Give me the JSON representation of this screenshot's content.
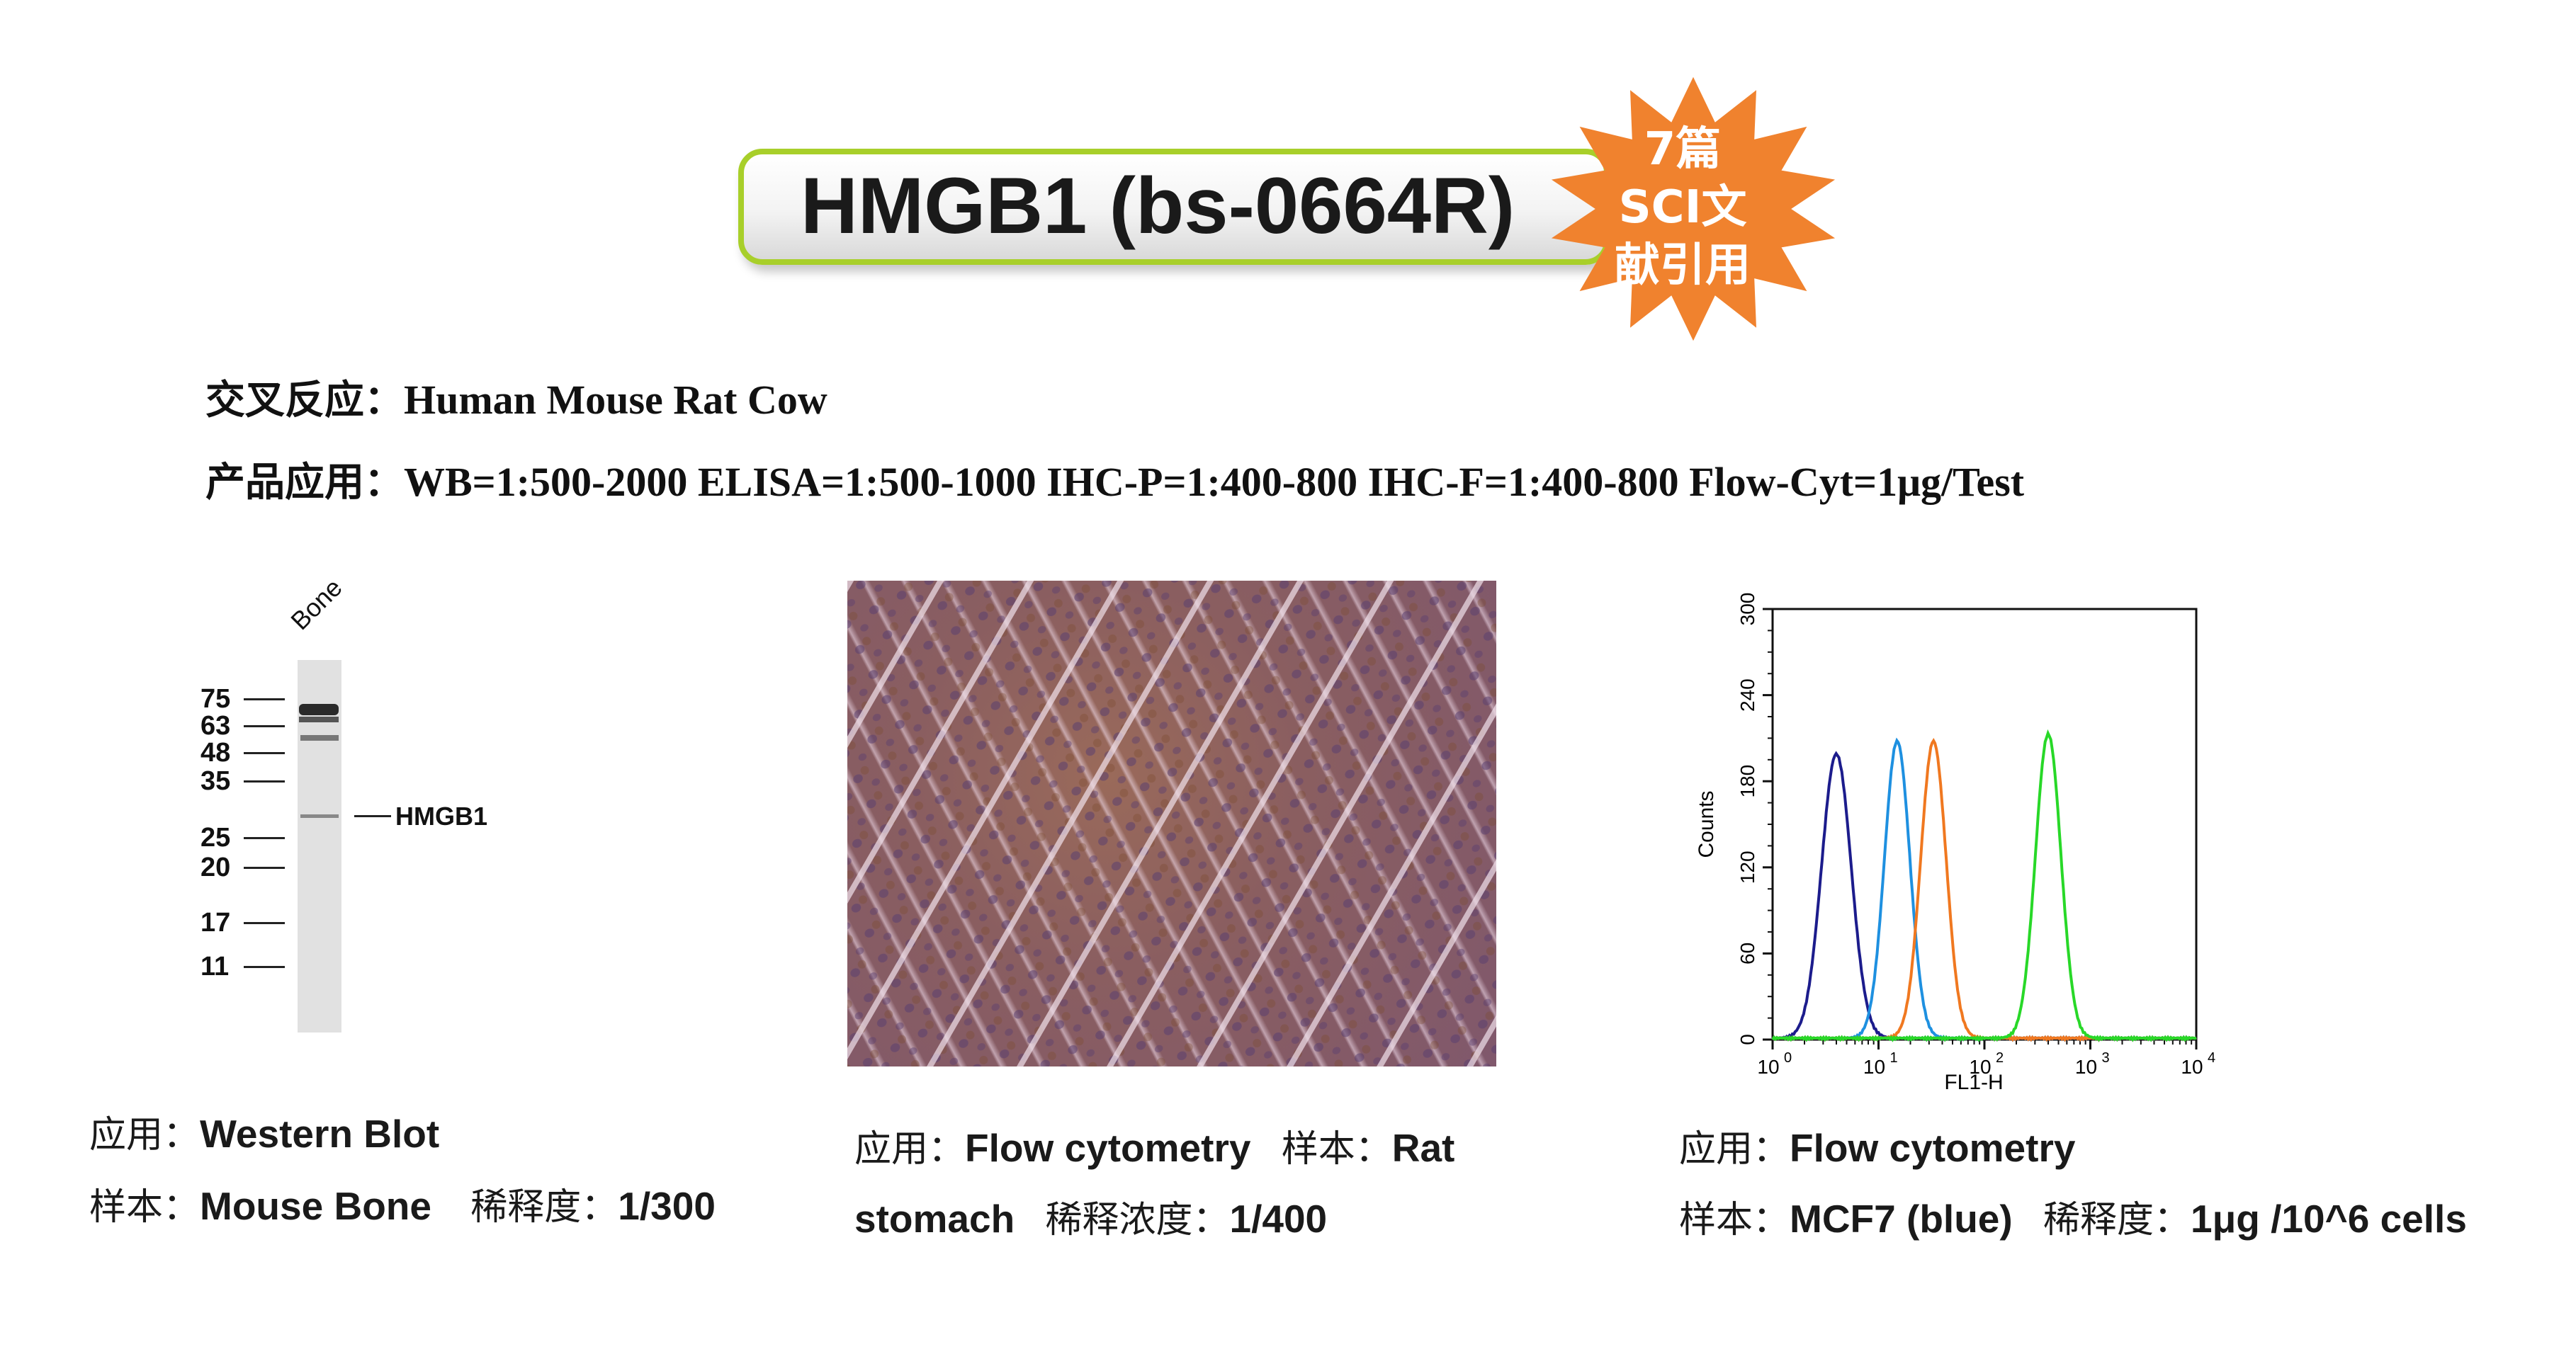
{
  "header": {
    "title": "HMGB1 (bs-0664R)",
    "badge_lines": [
      "7篇",
      "SCI文",
      "献引用"
    ],
    "badge_color": "#f0822e",
    "pill_border_color": "#a8cf2a"
  },
  "info": {
    "reactivity_label": "交叉反应：",
    "reactivity_value": "Human Mouse Rat Cow",
    "application_label": "产品应用：",
    "application_value": "WB=1:500-2000 ELISA=1:500-1000 IHC-P=1:400-800 IHC-F=1:400-800 Flow-Cyt=1μg/Test"
  },
  "western_blot": {
    "lane_label": "Bone",
    "markers": [
      "75",
      "63",
      "48",
      "35",
      "25",
      "20",
      "17",
      "11"
    ],
    "band_label": "HMGB1",
    "caption": {
      "app_label": "应用：",
      "app_value": "Western Blot",
      "sample_label": "样本：",
      "sample_value": "Mouse Bone",
      "dilution_label": "稀释度：",
      "dilution_value": "1/300"
    }
  },
  "ihc": {
    "caption": {
      "app_label": "应用：",
      "app_value": "Flow cytometry",
      "sample_label": "样本：",
      "sample_value_1": "Rat",
      "sample_value_2": "stomach",
      "dilution_label": "稀释浓度：",
      "dilution_value": "1/400"
    }
  },
  "flow": {
    "caption": {
      "app_label": "应用：",
      "app_value": "Flow cytometry",
      "sample_label": "样本：",
      "sample_value": "MCF7 (blue)",
      "dilution_label": "稀释度：",
      "dilution_value": "1μg /10^6 cells"
    }
  },
  "chart_data": {
    "type": "line",
    "xlabel": "FL1-H",
    "ylabel": "Counts",
    "x_scale": "log",
    "xlim": [
      1,
      10000
    ],
    "ylim": [
      0,
      300
    ],
    "x_ticks": [
      "10",
      "10",
      "10",
      "10",
      "10"
    ],
    "x_tick_exponents": [
      "0",
      "1",
      "2",
      "3",
      "4"
    ],
    "y_ticks": [
      "0",
      "60",
      "120",
      "180",
      "240",
      "300"
    ],
    "series": [
      {
        "color": "#1c1c8c",
        "peak_x": 4,
        "peak_y": 198,
        "width": 0.14
      },
      {
        "color": "#1e90e0",
        "peak_x": 15,
        "peak_y": 207,
        "width": 0.12
      },
      {
        "color": "#f07820",
        "peak_x": 33,
        "peak_y": 207,
        "width": 0.12
      },
      {
        "color": "#28d828",
        "peak_x": 400,
        "peak_y": 212,
        "width": 0.12
      }
    ]
  }
}
